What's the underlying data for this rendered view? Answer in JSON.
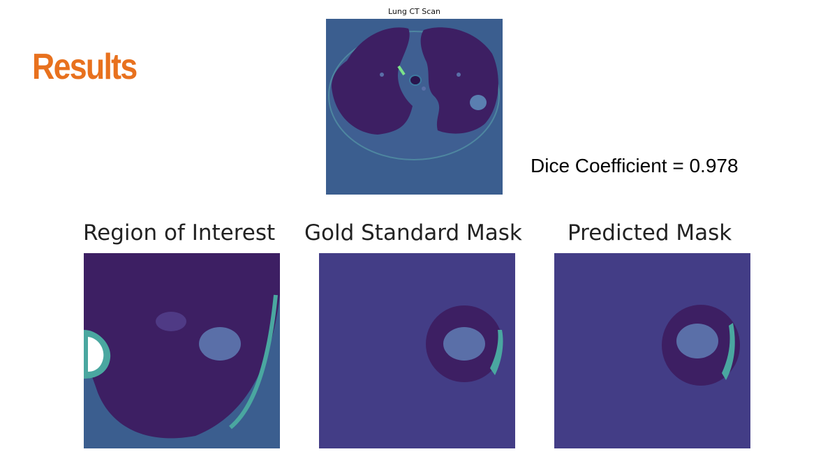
{
  "title": "Results",
  "ct_scan": {
    "caption": "Lung CT Scan"
  },
  "metric": {
    "text": "Dice Coefficient = 0.978"
  },
  "panels": [
    {
      "title": "Region of Interest"
    },
    {
      "title": "Gold Standard Mask"
    },
    {
      "title": "Predicted Mask"
    }
  ],
  "colors": {
    "accent": "#e8711e",
    "background_blue": "#3b5e8f",
    "tissue_purple": "#3d1f63",
    "mask_navy": "#433d86",
    "highlight_teal": "#4aa7a0"
  }
}
